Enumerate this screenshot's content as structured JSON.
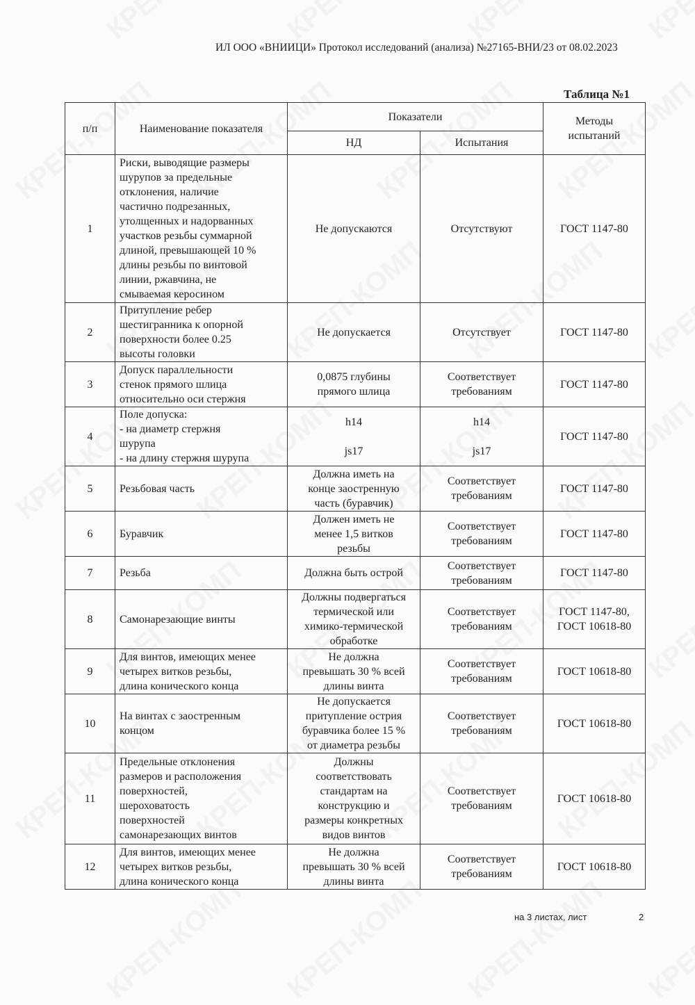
{
  "header": {
    "text": "ИЛ ООО «ВНИИЦИ»  Протокол исследований (анализа)  №27165-ВНИ/23 от  08.02.2023"
  },
  "table_title": "Таблица №1",
  "watermark": "КРЕП-КОМП",
  "columns": {
    "num": "п/п",
    "name": "Наименование показателя",
    "indicators": "Показатели",
    "nd": "НД",
    "test": "Испытания",
    "methods": "Методы\nиспытаний"
  },
  "rows": [
    {
      "num": "1",
      "name": "Риски, выводящие размеры\nшурупов за предельные\nотклонения, наличие\nчастично подрезанных,\nутолщенных и надорванных\nучастков резьбы суммарной\nдлиной, превышающей 10 %\nдлины резьбы по винтовой\nлинии, ржавчина, не\nсмываемая керосином",
      "nd": "Не допускаются",
      "test": "Отсутствуют",
      "method": "ГОСТ 1147-80"
    },
    {
      "num": "2",
      "name": "Притупление ребер\nшестигранника к опорной\nповерхности более 0.25\nвысоты головки",
      "nd": "Не допускается",
      "test": "Отсутствует",
      "method": "ГОСТ 1147-80"
    },
    {
      "num": "3",
      "name": "Допуск параллельности\nстенок прямого шлица\nотносительно оси стержня",
      "nd": "0,0875 глубины\nпрямого шлица",
      "test": "Соответствует\nтребованиям",
      "method": "ГОСТ 1147-80"
    },
    {
      "num": "4",
      "name": "Поле допуска:\n- на диаметр стержня\nшурупа\n- на длину стержня шурупа",
      "nd": "h14\n\njs17",
      "test": "h14\n\njs17",
      "method": "ГОСТ 1147-80"
    },
    {
      "num": "5",
      "name": "Резьбовая часть",
      "nd": "Должна иметь на\nконце заостренную\nчасть (буравчик)",
      "test": "Соответствует\nтребованиям",
      "method": "ГОСТ 1147-80"
    },
    {
      "num": "6",
      "name": "Буравчик",
      "nd": "Должен иметь не\nменее 1,5 витков\nрезьбы",
      "test": "Соответствует\nтребованиям",
      "method": "ГОСТ 1147-80"
    },
    {
      "num": "7",
      "name": "Резьба",
      "nd": "Должна быть острой",
      "test": "Соответствует\nтребованиям",
      "method": "ГОСТ 1147-80"
    },
    {
      "num": "8",
      "name": "Самонарезающие винты",
      "nd": "Должны подвергаться\nтермической или\nхимико-термической\nобработке",
      "test": "Соответствует\nтребованиям",
      "method": "ГОСТ 1147-80,\nГОСТ 10618-80"
    },
    {
      "num": "9",
      "name": "Для винтов, имеющих менее\nчетырех витков резьбы,\nдлина конического конца",
      "nd": "Не должна\nпревышать 30 % всей\nдлины винта",
      "test": "Соответствует\nтребованиям",
      "method": "ГОСТ 10618-80"
    },
    {
      "num": "10",
      "name": "На винтах с заостренным\nконцом",
      "nd": "Не допускается\nпритупление острия\nбуравчика более 15 %\nот диаметра резьбы",
      "test": "Соответствует\nтребованиям",
      "method": "ГОСТ 10618-80"
    },
    {
      "num": "11",
      "name": "Предельные отклонения\nразмеров и расположения\nповерхностей,\nшероховатость\nповерхностей\nсамонарезающих винтов",
      "nd": "Должны\nсоответствовать\nстандартам на\nконструкцию и\nразмеры конкретных\nвидов винтов",
      "test": "Соответствует\nтребованиям",
      "method": "ГОСТ 10618-80"
    },
    {
      "num": "12",
      "name": "Для винтов, имеющих менее\nчетырех витков резьбы,\nдлина конического конца",
      "nd": "Не должна\nпревышать 30 % всей\nдлины винта",
      "test": "Соответствует\nтребованиям",
      "method": "ГОСТ 10618-80"
    }
  ],
  "footer": {
    "sheets": "на 3  листах, лист",
    "page": "2"
  }
}
